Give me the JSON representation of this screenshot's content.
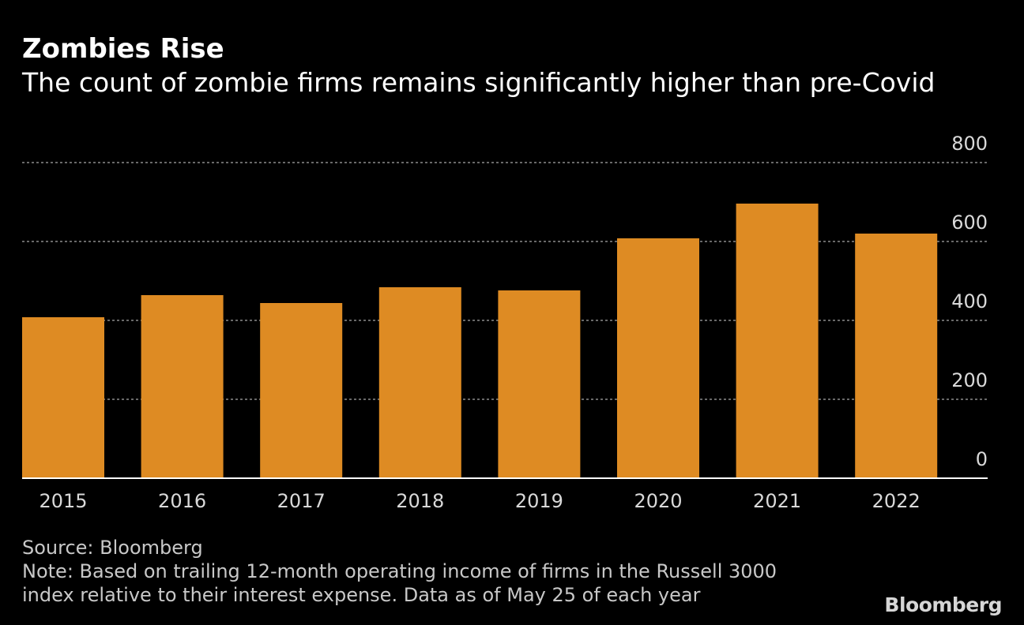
{
  "header": {
    "title": "Zombies Rise",
    "subtitle": "The count of zombie firms remains significantly higher than pre-Covid"
  },
  "chart_data": {
    "type": "bar",
    "categories": [
      "2015",
      "2016",
      "2017",
      "2018",
      "2019",
      "2020",
      "2021",
      "2022"
    ],
    "values": [
      408,
      464,
      444,
      484,
      476,
      608,
      696,
      620
    ],
    "ylim": [
      0,
      800
    ],
    "yticks": [
      "0",
      "200",
      "400",
      "600",
      "800"
    ],
    "ytick_values": [
      0,
      200,
      400,
      600,
      800
    ],
    "y_axis_side": "right",
    "grid": true,
    "xlabel": "",
    "ylabel": "",
    "colors": {
      "bar": "#DE8B23",
      "background": "#000000",
      "gridline": "#8c8c8c",
      "baseline": "#ffffff",
      "tick_text": "#d9d9d9"
    }
  },
  "footer": {
    "source": "Source: Bloomberg",
    "note_line1": "Note: Based on trailing 12-month operating income of firms in the Russell 3000",
    "note_line2": "index relative to their interest expense. Data as of May 25 of each year",
    "logo": "Bloomberg"
  }
}
